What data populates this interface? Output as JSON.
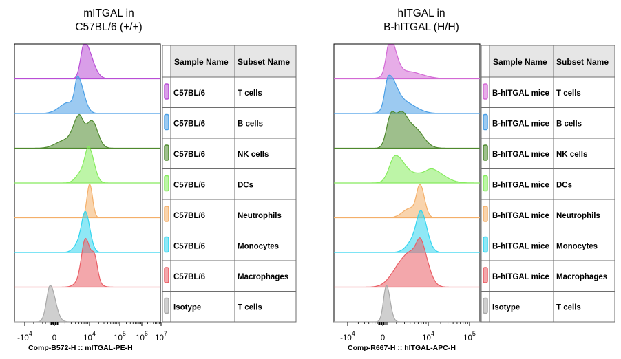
{
  "chart_data": [
    {
      "type": "histogram",
      "title": [
        "mITGAL in",
        "C57BL/6 (+/+)"
      ],
      "xlabel": "Comp-B572-H :: mITGAL-PE-H",
      "x_scale": "biexponential",
      "x_ticks": [
        {
          "base": "-10",
          "exp": "4",
          "value": -10000
        },
        {
          "base": "0",
          "exp": "",
          "value": 0
        },
        {
          "base": "10",
          "exp": "4",
          "value": 10000
        },
        {
          "base": "10",
          "exp": "5",
          "value": 100000
        },
        {
          "base": "10",
          "exp": "6",
          "value": 1000000
        },
        {
          "base": "10",
          "exp": "7",
          "value": 10000000
        }
      ],
      "table_headers": [
        "Sample Name",
        "Subset Name"
      ],
      "series": [
        {
          "sample": "C57BL/6",
          "subset": "T cells",
          "color": "#b94fd6",
          "peaks": [
            [
              0.48,
              1.0,
              0.025,
              0.05
            ]
          ],
          "tail": 0.2
        },
        {
          "sample": "C57BL/6",
          "subset": "B cells",
          "color": "#4a9fe6",
          "peaks": [
            [
              0.435,
              0.9,
              0.02,
              0.04
            ],
            [
              0.37,
              0.3,
              0.06,
              0.05
            ]
          ],
          "tail": 0.1
        },
        {
          "sample": "C57BL/6",
          "subset": "NK cells",
          "color": "#4f8a2e",
          "peaks": [
            [
              0.44,
              0.85,
              0.04,
              0.03
            ],
            [
              0.53,
              0.75,
              0.04,
              0.04
            ],
            [
              0.34,
              0.2,
              0.06,
              0.04
            ]
          ],
          "tail": 0.0
        },
        {
          "sample": "C57BL/6",
          "subset": "DCs",
          "color": "#86ec5e",
          "peaks": [
            [
              0.51,
              0.95,
              0.022,
              0.035
            ],
            [
              0.47,
              0.35,
              0.04,
              0.02
            ]
          ],
          "tail": 0.12
        },
        {
          "sample": "C57BL/6",
          "subset": "Neutrophils",
          "color": "#f4b06a",
          "peaks": [
            [
              0.515,
              0.92,
              0.018,
              0.02
            ]
          ],
          "tail": 0.05
        },
        {
          "sample": "C57BL/6",
          "subset": "Monocytes",
          "color": "#33d5ef",
          "peaks": [
            [
              0.49,
              0.9,
              0.025,
              0.03
            ],
            [
              0.46,
              0.35,
              0.04,
              0.03
            ]
          ],
          "tail": 0.08
        },
        {
          "sample": "C57BL/6",
          "subset": "Macrophages",
          "color": "#ea5f66",
          "peaks": [
            [
              0.485,
              0.9,
              0.025,
              0.03
            ],
            [
              0.55,
              0.55,
              0.02,
              0.02
            ],
            [
              0.5,
              0.45,
              0.05,
              0.05
            ]
          ],
          "tail": 0.05
        },
        {
          "sample": "Isotype",
          "subset": "T cells",
          "color": "#a8a8a8",
          "peaks": [
            [
              0.245,
              1.0,
              0.025,
              0.035
            ]
          ],
          "tail": 0.0
        }
      ]
    },
    {
      "type": "histogram",
      "title": [
        "hITGAL in",
        "B-hITGAL (H/H)"
      ],
      "xlabel": "Comp-R667-H :: hITGAL-APC-H",
      "x_scale": "biexponential",
      "x_ticks": [
        {
          "base": "-10",
          "exp": "4",
          "value": -10000
        },
        {
          "base": "0",
          "exp": "",
          "value": 0
        },
        {
          "base": "10",
          "exp": "4",
          "value": 10000
        },
        {
          "base": "10",
          "exp": "5",
          "value": 100000
        }
      ],
      "table_headers": [
        "Sample Name",
        "Subset Name"
      ],
      "series": [
        {
          "sample": "B-hITGAL mice",
          "subset": "T cells",
          "color": "#d369d5",
          "peaks": [
            [
              0.385,
              1.0,
              0.025,
              0.04
            ],
            [
              0.5,
              0.2,
              0.1,
              0.1
            ]
          ],
          "tail": 0.0
        },
        {
          "sample": "B-hITGAL mice",
          "subset": "B cells",
          "color": "#4a9fe6",
          "peaks": [
            [
              0.375,
              0.92,
              0.025,
              0.05
            ],
            [
              0.48,
              0.3,
              0.08,
              0.08
            ]
          ],
          "tail": 0.0
        },
        {
          "sample": "B-hITGAL mice",
          "subset": "NK cells",
          "color": "#4f8a2e",
          "peaks": [
            [
              0.39,
              0.85,
              0.03,
              0.03
            ],
            [
              0.46,
              0.78,
              0.035,
              0.04
            ],
            [
              0.55,
              0.55,
              0.06,
              0.06
            ]
          ],
          "tail": 0.0
        },
        {
          "sample": "B-hITGAL mice",
          "subset": "DCs",
          "color": "#86ec5e",
          "peaks": [
            [
              0.42,
              0.7,
              0.04,
              0.06
            ],
            [
              0.6,
              0.25,
              0.1,
              0.1
            ],
            [
              0.68,
              0.2,
              0.04,
              0.08
            ]
          ],
          "tail": 0.0
        },
        {
          "sample": "B-hITGAL mice",
          "subset": "Neutrophils",
          "color": "#f4b06a",
          "peaks": [
            [
              0.59,
              0.9,
              0.025,
              0.03
            ],
            [
              0.52,
              0.25,
              0.05,
              0.03
            ]
          ],
          "tail": 0.0
        },
        {
          "sample": "B-hITGAL mice",
          "subset": "Monocytes",
          "color": "#33d5ef",
          "peaks": [
            [
              0.6,
              0.85,
              0.03,
              0.04
            ],
            [
              0.56,
              0.4,
              0.05,
              0.05
            ]
          ],
          "tail": 0.0
        },
        {
          "sample": "B-hITGAL mice",
          "subset": "Macrophages",
          "color": "#ea5f66",
          "peaks": [
            [
              0.47,
              0.65,
              0.07,
              0.07
            ],
            [
              0.6,
              0.85,
              0.03,
              0.05
            ],
            [
              0.55,
              0.55,
              0.05,
              0.05
            ]
          ],
          "tail": 0.0
        },
        {
          "sample": "Isotype",
          "subset": "T cells",
          "color": "#a8a8a8",
          "peaks": [
            [
              0.36,
              1.0,
              0.02,
              0.025
            ]
          ],
          "tail": 0.0
        }
      ]
    }
  ]
}
